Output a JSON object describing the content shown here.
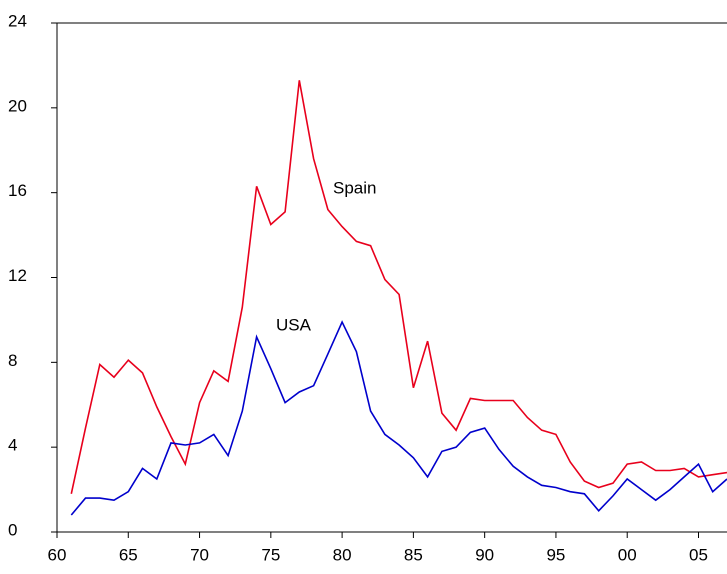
{
  "chart_data": {
    "type": "line",
    "x": [
      1961,
      1962,
      1963,
      1964,
      1965,
      1966,
      1967,
      1968,
      1969,
      1970,
      1971,
      1972,
      1973,
      1974,
      1975,
      1976,
      1977,
      1978,
      1979,
      1980,
      1981,
      1982,
      1983,
      1984,
      1985,
      1986,
      1987,
      1988,
      1989,
      1990,
      1991,
      1992,
      1993,
      1994,
      1995,
      1996,
      1997,
      1998,
      1999,
      2000,
      2001,
      2002,
      2003,
      2004,
      2005,
      2006,
      2007
    ],
    "series": [
      {
        "name": "Spain",
        "color": "#e8001c",
        "values": [
          1.8,
          4.9,
          7.9,
          7.3,
          8.1,
          7.5,
          5.9,
          4.5,
          3.2,
          6.1,
          7.6,
          7.1,
          10.6,
          16.3,
          14.5,
          15.1,
          21.3,
          17.6,
          15.2,
          14.4,
          13.7,
          13.5,
          11.9,
          11.2,
          6.8,
          9.0,
          5.6,
          4.8,
          6.3,
          6.2,
          6.2,
          6.2,
          5.4,
          4.8,
          4.6,
          3.3,
          2.4,
          2.1,
          2.3,
          3.2,
          3.3,
          2.9,
          2.9,
          3.0,
          2.6,
          2.7,
          2.8
        ]
      },
      {
        "name": "USA",
        "color": "#0000cc",
        "values": [
          0.8,
          1.6,
          1.6,
          1.5,
          1.9,
          3.0,
          2.5,
          4.2,
          4.1,
          4.2,
          4.6,
          3.6,
          5.7,
          9.2,
          7.7,
          6.1,
          6.6,
          6.9,
          8.4,
          9.9,
          8.5,
          5.7,
          4.6,
          4.1,
          3.5,
          2.6,
          3.8,
          4.0,
          4.7,
          4.9,
          3.9,
          3.1,
          2.6,
          2.2,
          2.1,
          1.9,
          1.8,
          1.0,
          1.7,
          2.5,
          2.0,
          1.5,
          2.0,
          2.6,
          3.2,
          1.9,
          2.5
        ]
      }
    ],
    "annotations": [
      "Spain",
      "USA"
    ],
    "xlim": [
      1960,
      2007
    ],
    "xticks": [
      {
        "value": 1960,
        "label": "60"
      },
      {
        "value": 1965,
        "label": "65"
      },
      {
        "value": 1970,
        "label": "70"
      },
      {
        "value": 1975,
        "label": "75"
      },
      {
        "value": 1980,
        "label": "80"
      },
      {
        "value": 1985,
        "label": "85"
      },
      {
        "value": 1990,
        "label": "90"
      },
      {
        "value": 1995,
        "label": "95"
      },
      {
        "value": 2000,
        "label": "00"
      },
      {
        "value": 2005,
        "label": "05"
      }
    ],
    "ylim": [
      0,
      24
    ],
    "yticks": [
      0,
      4,
      8,
      12,
      16,
      20,
      24
    ],
    "grid": false
  }
}
